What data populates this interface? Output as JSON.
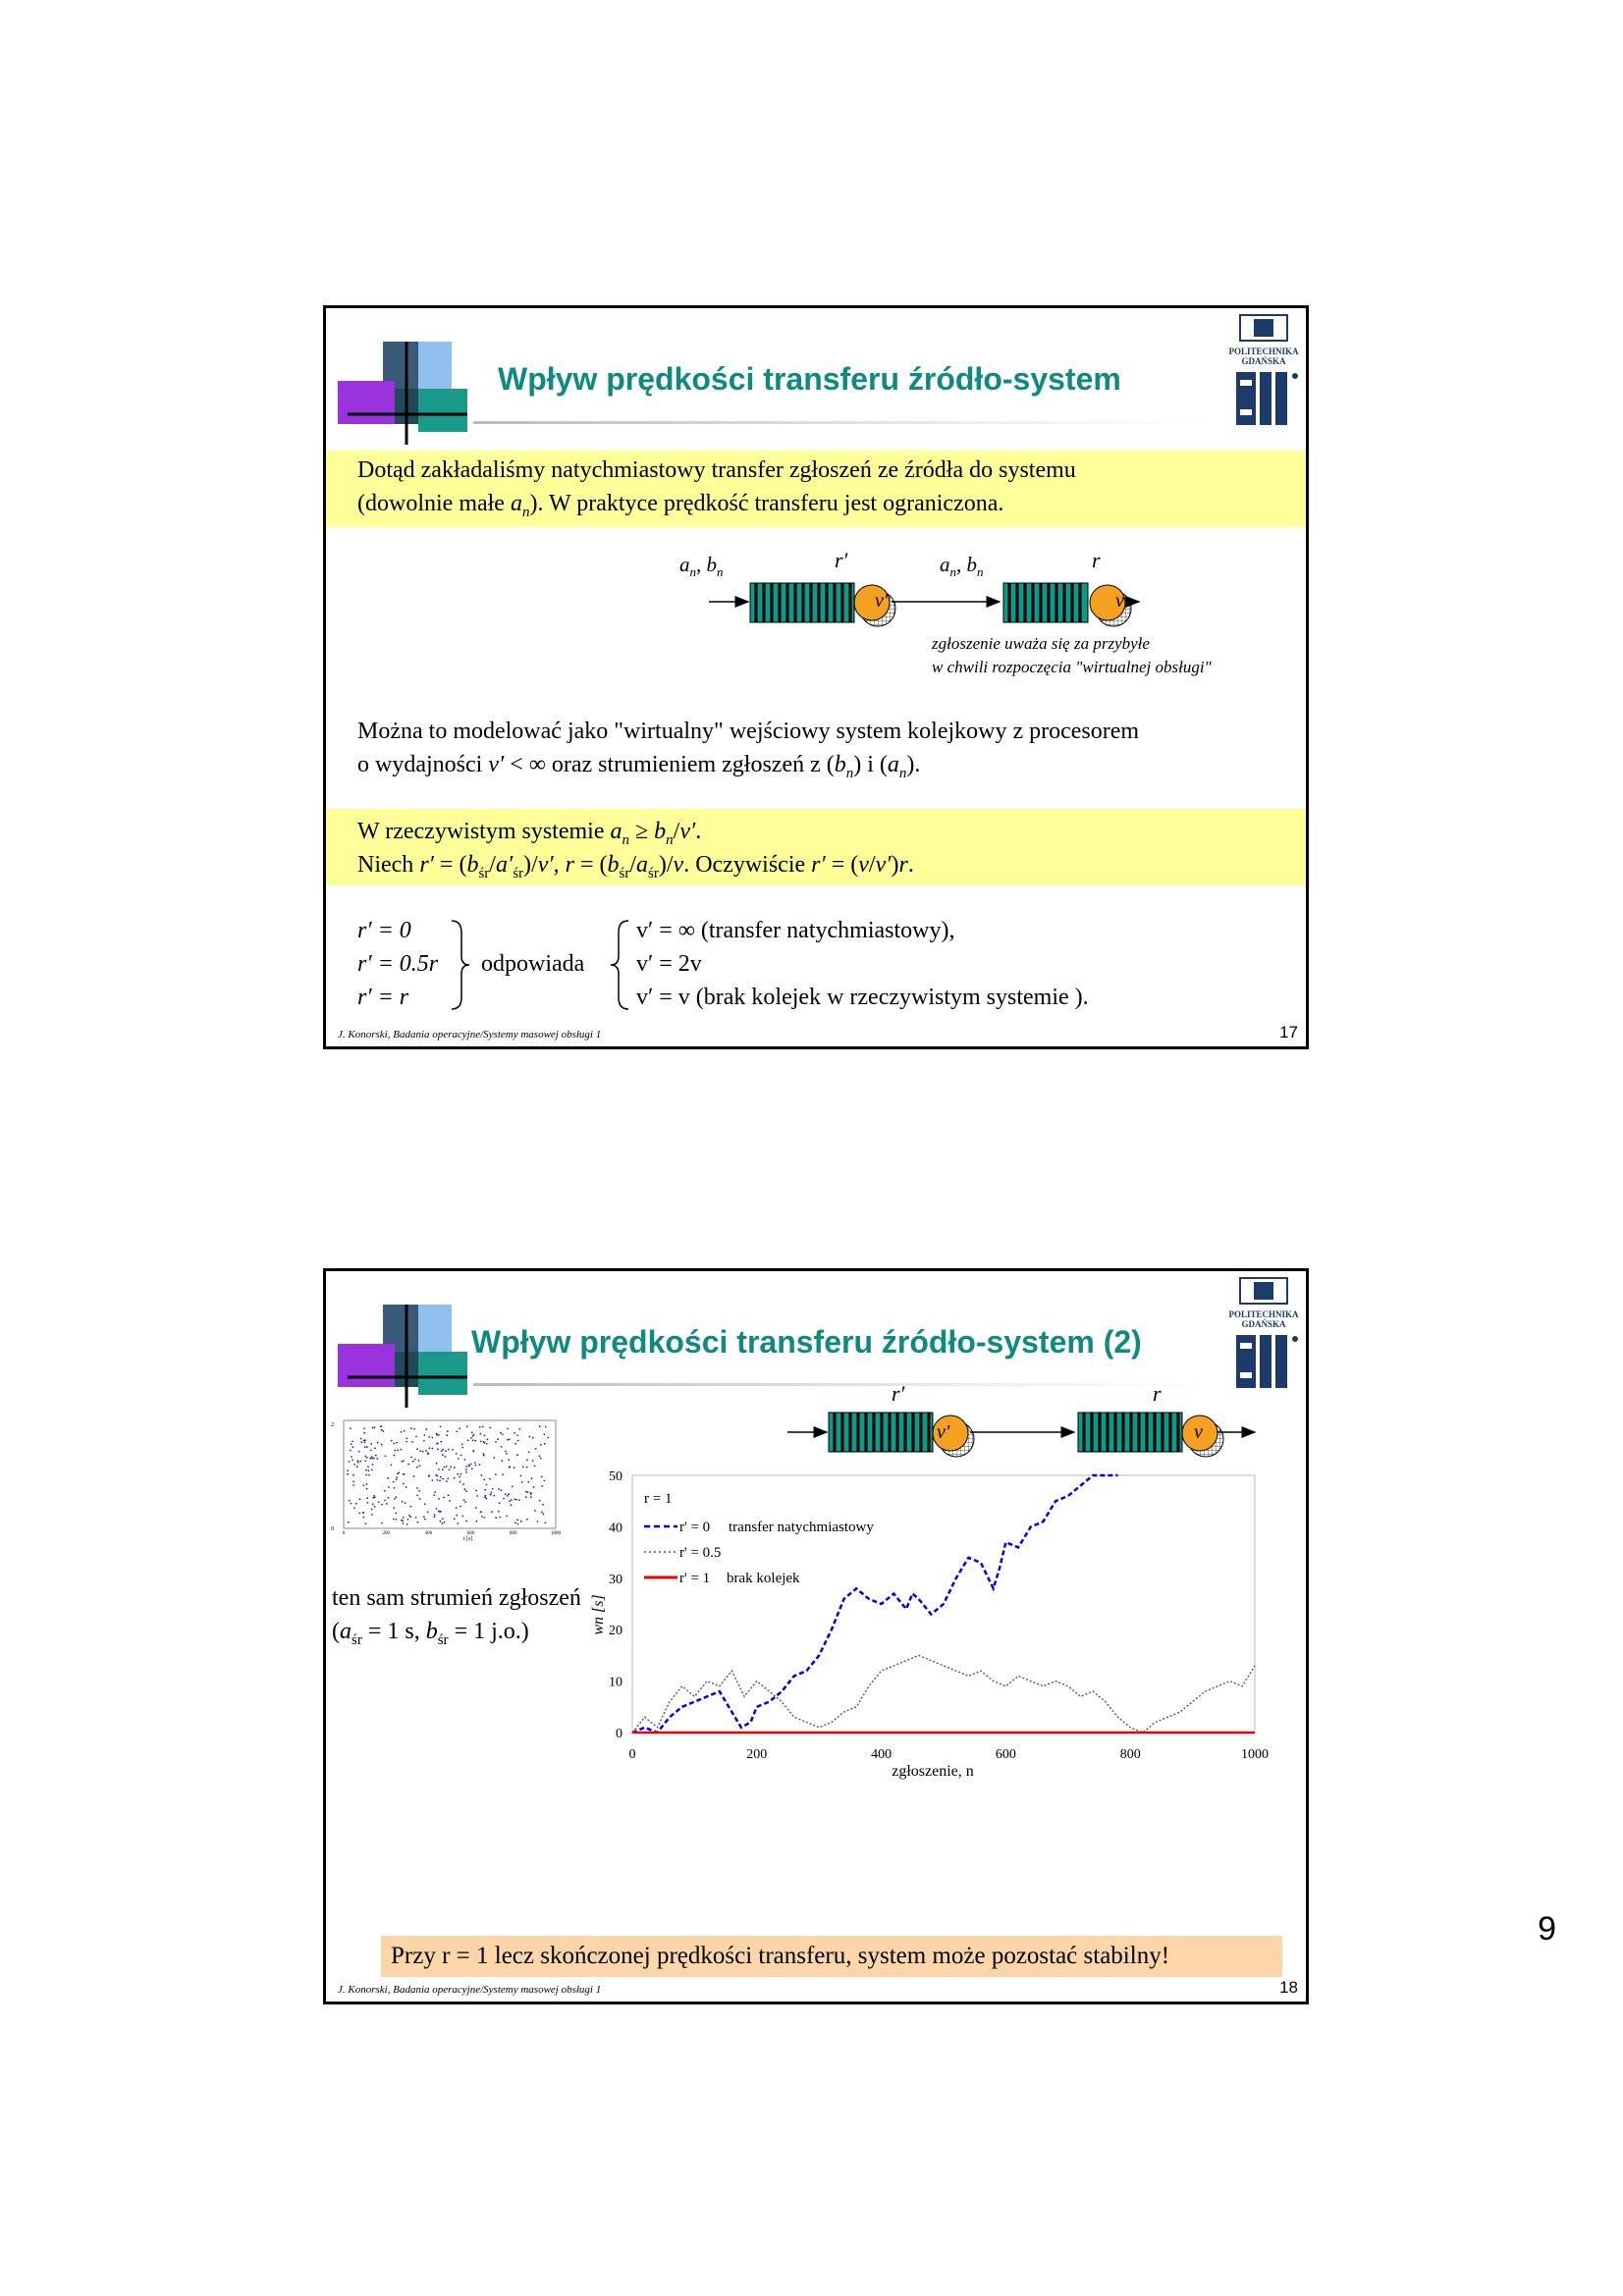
{
  "slide1": {
    "title": "Wpływ prędkości transferu źródło-system",
    "intro_line1": "Dotąd zakładaliśmy natychmiastowy transfer zgłoszeń ze źródła do systemu",
    "intro_line2_pre": "(dowolnie małe ",
    "intro_line2_post": "). W praktyce prędkość transferu jest ograniczona.",
    "diagram": {
      "input_label": "an, bn",
      "queue1_label": "r′",
      "server1_label": "v′",
      "mid_label": "an, bn",
      "queue2_label": "r",
      "server2_label": "v",
      "note_line1": "zgłoszenie uważa się za przybyłe",
      "note_line2": "w chwili rozpoczęcia \"wirtualnej obsługi\""
    },
    "model_line1": "Można to modelować jako \"wirtualny\" wejściowy system kolejkowy z procesorem",
    "model_line2_pre": "o wydajności ",
    "model_line2_mid": " < ∞ oraz strumieniem zgłoszeń z (",
    "model_line2_and": ") i (",
    "model_line2_end": ").",
    "real_line1_pre": "W rzeczywistym systemie ",
    "real_line2_pre": "Niech ",
    "real_line2_obv": ". Oczywiście ",
    "cases_left": [
      "r′ = 0",
      "r′ = 0.5r",
      "r′ = r"
    ],
    "cases_mid": "odpowiada",
    "cases_right": [
      "v′ = ∞ (transfer natychmiastowy),",
      "v′ = 2v",
      "v′ = v (brak kolejek w rzeczywistym systemie )."
    ],
    "footer": "J. Konorski, Badania operacyjne/Systemy masowej obsługi 1",
    "page": "17"
  },
  "slide2": {
    "title": "Wpływ prędkości transferu źródło-system (2)",
    "queue1_label": "r′",
    "server1_label": "v′",
    "queue2_label": "r",
    "server2_label": "v",
    "same_stream": "ten sam strumień zgłoszeń",
    "same_stream2_pre": "(",
    "same_stream2_post": " = 1 s, ",
    "same_stream2_end": " = 1 j.o.)",
    "conclusion": "Przy r = 1 lecz skończonej prędkości transferu, system może pozostać stabilny!",
    "footer": "J. Konorski, Badania operacyjne/Systemy masowej obsługi 1",
    "page": "18"
  },
  "chart_data": [
    {
      "type": "line",
      "xlabel": "zgłoszenie, n",
      "ylabel": "wn [s]",
      "xlim": [
        0,
        1000
      ],
      "ylim": [
        0,
        50
      ],
      "xticks": [
        0,
        200,
        400,
        600,
        800,
        1000
      ],
      "yticks": [
        0,
        10,
        20,
        30,
        40,
        50
      ],
      "legend_title": "r = 1",
      "legend_placement": "top-left",
      "series": [
        {
          "name": "r' = 0",
          "name_note": "transfer natychmiastowy",
          "style": "dashed",
          "color": "#0000ee",
          "x": [
            0,
            20,
            40,
            60,
            80,
            100,
            120,
            140,
            160,
            175,
            190,
            200,
            220,
            240,
            260,
            280,
            300,
            320,
            340,
            360,
            380,
            400,
            420,
            440,
            450,
            460,
            480,
            500,
            520,
            540,
            560,
            580,
            590,
            600,
            620,
            640,
            660,
            680,
            700,
            720,
            740,
            760,
            780
          ],
          "y": [
            0,
            1,
            0,
            3,
            5,
            6,
            7,
            8,
            4,
            1,
            2,
            5,
            6,
            8,
            11,
            12,
            15,
            20,
            26,
            28,
            26,
            25,
            27,
            24,
            27,
            26,
            23,
            25,
            30,
            34,
            33,
            28,
            32,
            37,
            36,
            40,
            41,
            45,
            46,
            48,
            50,
            51,
            52
          ]
        },
        {
          "name": "r' = 0.5",
          "style": "dotted",
          "color": "#555555",
          "x": [
            0,
            20,
            40,
            60,
            80,
            100,
            120,
            140,
            160,
            180,
            200,
            220,
            240,
            260,
            280,
            300,
            320,
            340,
            360,
            380,
            400,
            420,
            440,
            460,
            480,
            500,
            520,
            540,
            560,
            580,
            600,
            620,
            640,
            660,
            680,
            700,
            720,
            740,
            760,
            780,
            800,
            820,
            840,
            860,
            880,
            900,
            920,
            940,
            960,
            980,
            1000
          ],
          "y": [
            0,
            3,
            1,
            6,
            9,
            7,
            10,
            9,
            12,
            7,
            10,
            8,
            6,
            3,
            2,
            1,
            2,
            4,
            5,
            9,
            12,
            13,
            14,
            15,
            14,
            13,
            12,
            11,
            12,
            10,
            9,
            11,
            10,
            9,
            10,
            9,
            7,
            8,
            6,
            3,
            1,
            0,
            2,
            3,
            4,
            6,
            8,
            9,
            10,
            9,
            13
          ]
        },
        {
          "name": "r' = 1",
          "name_note": "brak kolejek",
          "style": "solid",
          "color": "#ee0000",
          "x": [
            0,
            1000
          ],
          "y": [
            0,
            0
          ]
        }
      ]
    },
    {
      "type": "scatter",
      "xlabel": "t [s]",
      "xlim": [
        0,
        1000
      ],
      "ylim": [
        0,
        2
      ],
      "xticks": [
        0,
        200,
        400,
        600,
        800,
        1000
      ],
      "yticks": [
        0,
        2
      ]
    }
  ]
}
